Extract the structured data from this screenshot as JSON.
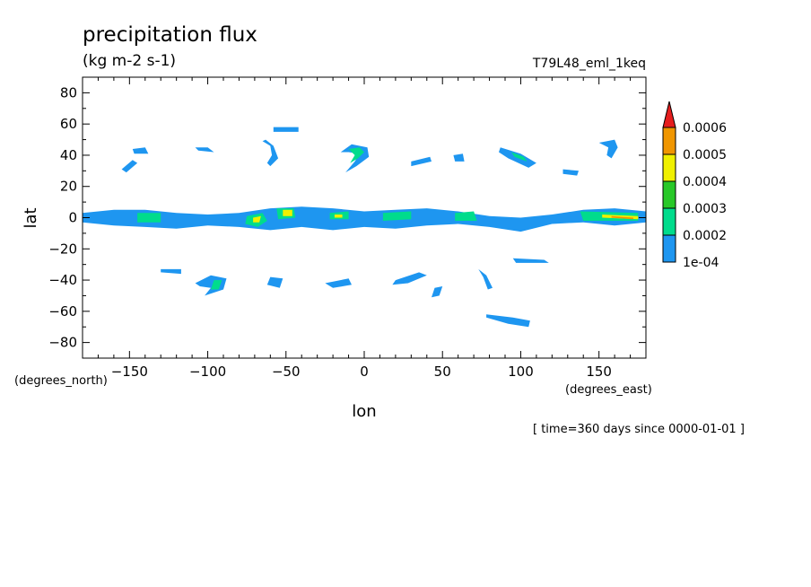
{
  "chart_data": {
    "type": "heatmap",
    "title": "precipitation flux",
    "subtitle": "(kg m-2 s-1)",
    "dataset_label": "T79L48_eml_1keq",
    "xlabel": "lon",
    "ylabel": "lat",
    "x_units": "(degrees_east)",
    "y_units": "(degrees_north)",
    "time_note": "[ time=360 days since 0000-01-01 ]",
    "xlim": [
      -180,
      180
    ],
    "ylim": [
      -90,
      90
    ],
    "x_ticks": [
      -150,
      -100,
      -50,
      0,
      50,
      100,
      150
    ],
    "y_ticks": [
      80,
      60,
      40,
      20,
      0,
      -20,
      -40,
      -60,
      -80
    ],
    "colorbar": {
      "levels": [
        0.0001,
        0.0002,
        0.0003,
        0.0004,
        0.0005,
        0.0006
      ],
      "tick_labels": [
        "1e-04",
        "0.0002",
        "0.0003",
        "0.0004",
        "0.0005",
        "0.0006"
      ],
      "colors": [
        "#1e96f0",
        "#00dc8c",
        "#28c828",
        "#f0f000",
        "#f09600",
        "#e61e1e"
      ],
      "extend": "max"
    },
    "features": [
      {
        "name": "itcz-band",
        "level": 1,
        "points": [
          [
            -180,
            3
          ],
          [
            -160,
            5
          ],
          [
            -140,
            5
          ],
          [
            -120,
            3
          ],
          [
            -100,
            2
          ],
          [
            -80,
            3
          ],
          [
            -60,
            6
          ],
          [
            -40,
            7
          ],
          [
            -20,
            6
          ],
          [
            0,
            4
          ],
          [
            20,
            5
          ],
          [
            40,
            6
          ],
          [
            60,
            4
          ],
          [
            80,
            1
          ],
          [
            100,
            0
          ],
          [
            120,
            2
          ],
          [
            140,
            5
          ],
          [
            160,
            6
          ],
          [
            180,
            4
          ],
          [
            180,
            -3
          ],
          [
            160,
            -5
          ],
          [
            140,
            -3
          ],
          [
            120,
            -4
          ],
          [
            100,
            -9
          ],
          [
            80,
            -6
          ],
          [
            60,
            -4
          ],
          [
            40,
            -5
          ],
          [
            20,
            -7
          ],
          [
            0,
            -6
          ],
          [
            -20,
            -8
          ],
          [
            -40,
            -6
          ],
          [
            -60,
            -8
          ],
          [
            -80,
            -6
          ],
          [
            -100,
            -5
          ],
          [
            -120,
            -7
          ],
          [
            -140,
            -6
          ],
          [
            -160,
            -5
          ],
          [
            -180,
            -3
          ]
        ]
      },
      {
        "name": "itcz-green-1",
        "level": 2,
        "points": [
          [
            -145,
            3
          ],
          [
            -130,
            3
          ],
          [
            -130,
            -3
          ],
          [
            -145,
            -3
          ]
        ]
      },
      {
        "name": "itcz-green-2",
        "level": 2,
        "points": [
          [
            -75,
            1
          ],
          [
            -65,
            3
          ],
          [
            -62,
            -2
          ],
          [
            -68,
            -6
          ],
          [
            -76,
            -4
          ]
        ]
      },
      {
        "name": "itcz-green-3",
        "level": 2,
        "points": [
          [
            -56,
            6
          ],
          [
            -45,
            6
          ],
          [
            -44,
            0
          ],
          [
            -55,
            -1
          ]
        ]
      },
      {
        "name": "itcz-green-4",
        "level": 2,
        "points": [
          [
            -22,
            3
          ],
          [
            -10,
            4
          ],
          [
            -10,
            -1
          ],
          [
            -22,
            -1
          ]
        ]
      },
      {
        "name": "itcz-green-5",
        "level": 2,
        "points": [
          [
            12,
            3
          ],
          [
            30,
            4
          ],
          [
            30,
            -1
          ],
          [
            12,
            -2
          ]
        ]
      },
      {
        "name": "itcz-green-6",
        "level": 2,
        "points": [
          [
            58,
            3
          ],
          [
            70,
            4
          ],
          [
            72,
            -2
          ],
          [
            58,
            -2
          ]
        ]
      },
      {
        "name": "itcz-green-7",
        "level": 2,
        "points": [
          [
            138,
            4
          ],
          [
            175,
            3
          ],
          [
            175,
            -2
          ],
          [
            140,
            -2
          ]
        ]
      },
      {
        "name": "itcz-yellow-1",
        "level": 4,
        "points": [
          [
            -52,
            5
          ],
          [
            -46,
            5
          ],
          [
            -46,
            1
          ],
          [
            -52,
            1
          ]
        ]
      },
      {
        "name": "itcz-yellow-2",
        "level": 4,
        "points": [
          [
            -71,
            0
          ],
          [
            -66,
            1
          ],
          [
            -67,
            -3
          ],
          [
            -71,
            -3
          ]
        ]
      },
      {
        "name": "itcz-yellow-3",
        "level": 4,
        "points": [
          [
            -19,
            2
          ],
          [
            -14,
            2
          ],
          [
            -14,
            0
          ],
          [
            -19,
            0
          ]
        ]
      },
      {
        "name": "itcz-yellow-4",
        "level": 4,
        "points": [
          [
            152,
            2
          ],
          [
            175,
            1
          ],
          [
            175,
            -1
          ],
          [
            152,
            0
          ]
        ]
      },
      {
        "name": "itcz-orange-1",
        "level": 5,
        "points": [
          [
            158,
            1
          ],
          [
            172,
            0
          ],
          [
            172,
            -1
          ],
          [
            158,
            0
          ]
        ]
      },
      {
        "name": "nh-blob-m142",
        "level": 1,
        "points": [
          [
            -148,
            44
          ],
          [
            -140,
            45
          ],
          [
            -138,
            41
          ],
          [
            -147,
            41
          ]
        ]
      },
      {
        "name": "nh-streak-m150",
        "level": 1,
        "points": [
          [
            -155,
            31
          ],
          [
            -148,
            37
          ],
          [
            -145,
            35
          ],
          [
            -152,
            29
          ]
        ]
      },
      {
        "name": "nh-blob-m100",
        "level": 1,
        "points": [
          [
            -108,
            45
          ],
          [
            -100,
            45
          ],
          [
            -96,
            42
          ],
          [
            -106,
            43
          ]
        ]
      },
      {
        "name": "nh-curve-m60",
        "level": 1,
        "points": [
          [
            -63,
            50
          ],
          [
            -58,
            46
          ],
          [
            -55,
            38
          ],
          [
            -60,
            33
          ],
          [
            -62,
            35
          ],
          [
            -59,
            40
          ],
          [
            -60,
            46
          ],
          [
            -65,
            49
          ]
        ]
      },
      {
        "name": "nh-blob-m52",
        "level": 1,
        "points": [
          [
            -58,
            58
          ],
          [
            -42,
            58
          ],
          [
            -42,
            55
          ],
          [
            -58,
            55
          ]
        ]
      },
      {
        "name": "nh-hook-m5",
        "level": 1,
        "points": [
          [
            -15,
            42
          ],
          [
            -8,
            47
          ],
          [
            2,
            45
          ],
          [
            3,
            39
          ],
          [
            -5,
            33
          ],
          [
            -12,
            29
          ],
          [
            -6,
            36
          ],
          [
            -3,
            41
          ],
          [
            -10,
            42
          ]
        ]
      },
      {
        "name": "nh-hook-green-m5",
        "level": 2,
        "points": [
          [
            -10,
            44
          ],
          [
            -3,
            45
          ],
          [
            0,
            42
          ],
          [
            -4,
            38
          ],
          [
            -9,
            35
          ],
          [
            -6,
            40
          ]
        ]
      },
      {
        "name": "nh-streaks-30",
        "level": 1,
        "points": [
          [
            30,
            36
          ],
          [
            42,
            39
          ],
          [
            43,
            36
          ],
          [
            30,
            33
          ]
        ]
      },
      {
        "name": "nh-blob-60",
        "level": 1,
        "points": [
          [
            57,
            40
          ],
          [
            63,
            41
          ],
          [
            64,
            36
          ],
          [
            58,
            36
          ]
        ]
      },
      {
        "name": "nh-blob-100",
        "level": 1,
        "points": [
          [
            87,
            45
          ],
          [
            100,
            41
          ],
          [
            110,
            35
          ],
          [
            105,
            32
          ],
          [
            92,
            38
          ],
          [
            86,
            42
          ]
        ]
      },
      {
        "name": "nh-blob-green-100",
        "level": 2,
        "points": [
          [
            94,
            42
          ],
          [
            102,
            39
          ],
          [
            104,
            36
          ],
          [
            96,
            39
          ]
        ]
      },
      {
        "name": "nh-blob-130",
        "level": 1,
        "points": [
          [
            127,
            31
          ],
          [
            137,
            30
          ],
          [
            136,
            27
          ],
          [
            127,
            28
          ]
        ]
      },
      {
        "name": "nh-hook-155",
        "level": 1,
        "points": [
          [
            150,
            48
          ],
          [
            160,
            50
          ],
          [
            162,
            45
          ],
          [
            158,
            38
          ],
          [
            155,
            40
          ],
          [
            156,
            45
          ]
        ]
      },
      {
        "name": "sh-blob-m122",
        "level": 1,
        "points": [
          [
            -130,
            -33
          ],
          [
            -117,
            -33
          ],
          [
            -117,
            -36
          ],
          [
            -130,
            -35
          ]
        ]
      },
      {
        "name": "sh-swirl-m95",
        "level": 1,
        "points": [
          [
            -108,
            -42
          ],
          [
            -98,
            -37
          ],
          [
            -88,
            -39
          ],
          [
            -90,
            -46
          ],
          [
            -102,
            -50
          ],
          [
            -98,
            -45
          ],
          [
            -105,
            -44
          ]
        ]
      },
      {
        "name": "sh-swirl-green-m95",
        "level": 2,
        "points": [
          [
            -96,
            -40
          ],
          [
            -91,
            -40
          ],
          [
            -93,
            -46
          ],
          [
            -98,
            -46
          ]
        ]
      },
      {
        "name": "sh-blob-m55",
        "level": 1,
        "points": [
          [
            -60,
            -38
          ],
          [
            -52,
            -39
          ],
          [
            -54,
            -45
          ],
          [
            -62,
            -43
          ]
        ]
      },
      {
        "name": "sh-blob-m10",
        "level": 1,
        "points": [
          [
            -25,
            -42
          ],
          [
            -10,
            -39
          ],
          [
            -8,
            -43
          ],
          [
            -20,
            -45
          ]
        ]
      },
      {
        "name": "sh-blob-35",
        "level": 1,
        "points": [
          [
            20,
            -40
          ],
          [
            35,
            -35
          ],
          [
            40,
            -37
          ],
          [
            28,
            -42
          ],
          [
            18,
            -43
          ]
        ]
      },
      {
        "name": "sh-blob-50",
        "level": 1,
        "points": [
          [
            45,
            -45
          ],
          [
            50,
            -44
          ],
          [
            48,
            -50
          ],
          [
            43,
            -51
          ]
        ]
      },
      {
        "name": "sh-streak-75",
        "level": 1,
        "points": [
          [
            73,
            -33
          ],
          [
            78,
            -37
          ],
          [
            82,
            -45
          ],
          [
            79,
            -46
          ],
          [
            76,
            -38
          ]
        ]
      },
      {
        "name": "sh-streak-110",
        "level": 1,
        "points": [
          [
            95,
            -26
          ],
          [
            115,
            -27
          ],
          [
            118,
            -29
          ],
          [
            97,
            -29
          ]
        ]
      },
      {
        "name": "sh-blob-95",
        "level": 1,
        "points": [
          [
            78,
            -62
          ],
          [
            95,
            -64
          ],
          [
            106,
            -66
          ],
          [
            105,
            -70
          ],
          [
            92,
            -68
          ],
          [
            78,
            -64
          ]
        ]
      }
    ]
  }
}
